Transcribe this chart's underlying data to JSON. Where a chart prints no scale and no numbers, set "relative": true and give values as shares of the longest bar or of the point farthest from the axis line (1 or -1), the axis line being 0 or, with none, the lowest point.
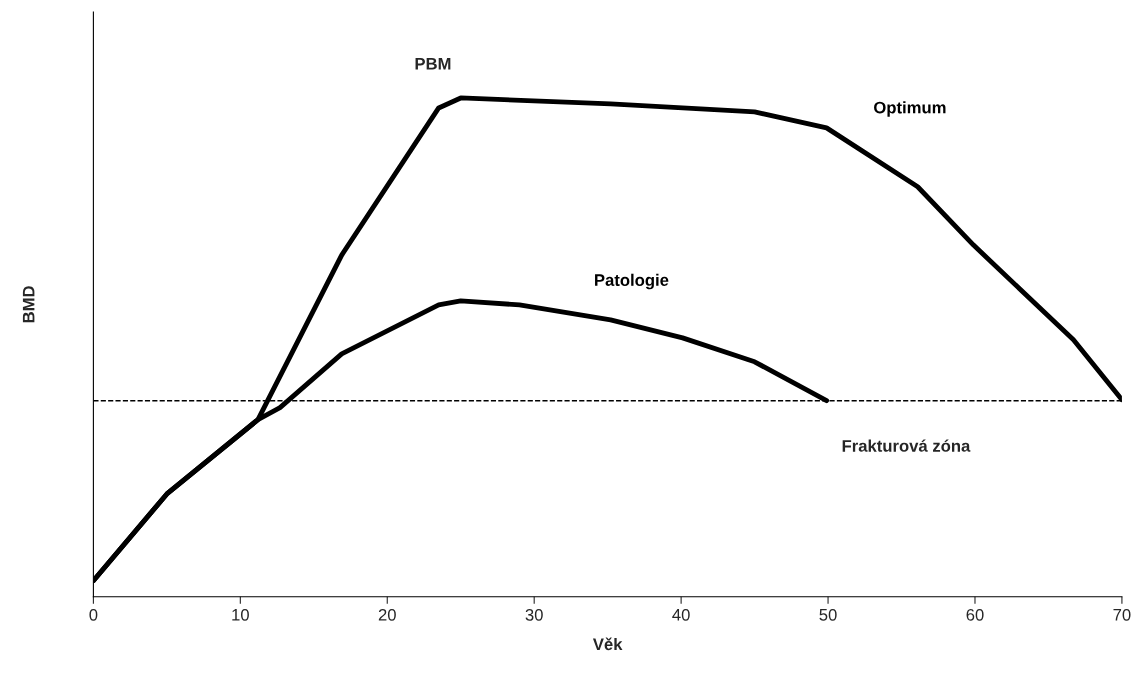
{
  "chart_data": {
    "type": "line",
    "xlabel": "Věk",
    "ylabel": "BMD",
    "relative": true,
    "xlim": [
      0,
      70
    ],
    "xticks": [
      0,
      10,
      20,
      30,
      40,
      50,
      60,
      70
    ],
    "grid": false,
    "legend": false,
    "marker": "none",
    "line_style": "solid",
    "series": [
      {
        "name": "Optimum",
        "color": "#000000",
        "x": [
          0,
          5,
          11.2,
          16.9,
          23.5,
          25,
          35.2,
          45,
          49.9,
          56.1,
          59.9,
          66.7,
          70
        ],
        "values": [
          0.032,
          0.206,
          0.355,
          0.685,
          0.98,
          1.0,
          0.988,
          0.972,
          0.94,
          0.822,
          0.705,
          0.515,
          0.395
        ]
      },
      {
        "name": "Patologie",
        "color": "#000000",
        "x": [
          0,
          5,
          11.2,
          12.7,
          16.9,
          23.5,
          25,
          29,
          35.2,
          40.1,
          45,
          49.9
        ],
        "values": [
          0.032,
          0.206,
          0.355,
          0.379,
          0.487,
          0.585,
          0.593,
          0.585,
          0.555,
          0.519,
          0.471,
          0.393
        ]
      }
    ],
    "ref_lines": [
      {
        "axis": "y",
        "value": 0.393,
        "label": "Frakturová zóna",
        "color": "#000000",
        "line_style": "dashed"
      }
    ],
    "annotations": [
      "PBM"
    ]
  }
}
